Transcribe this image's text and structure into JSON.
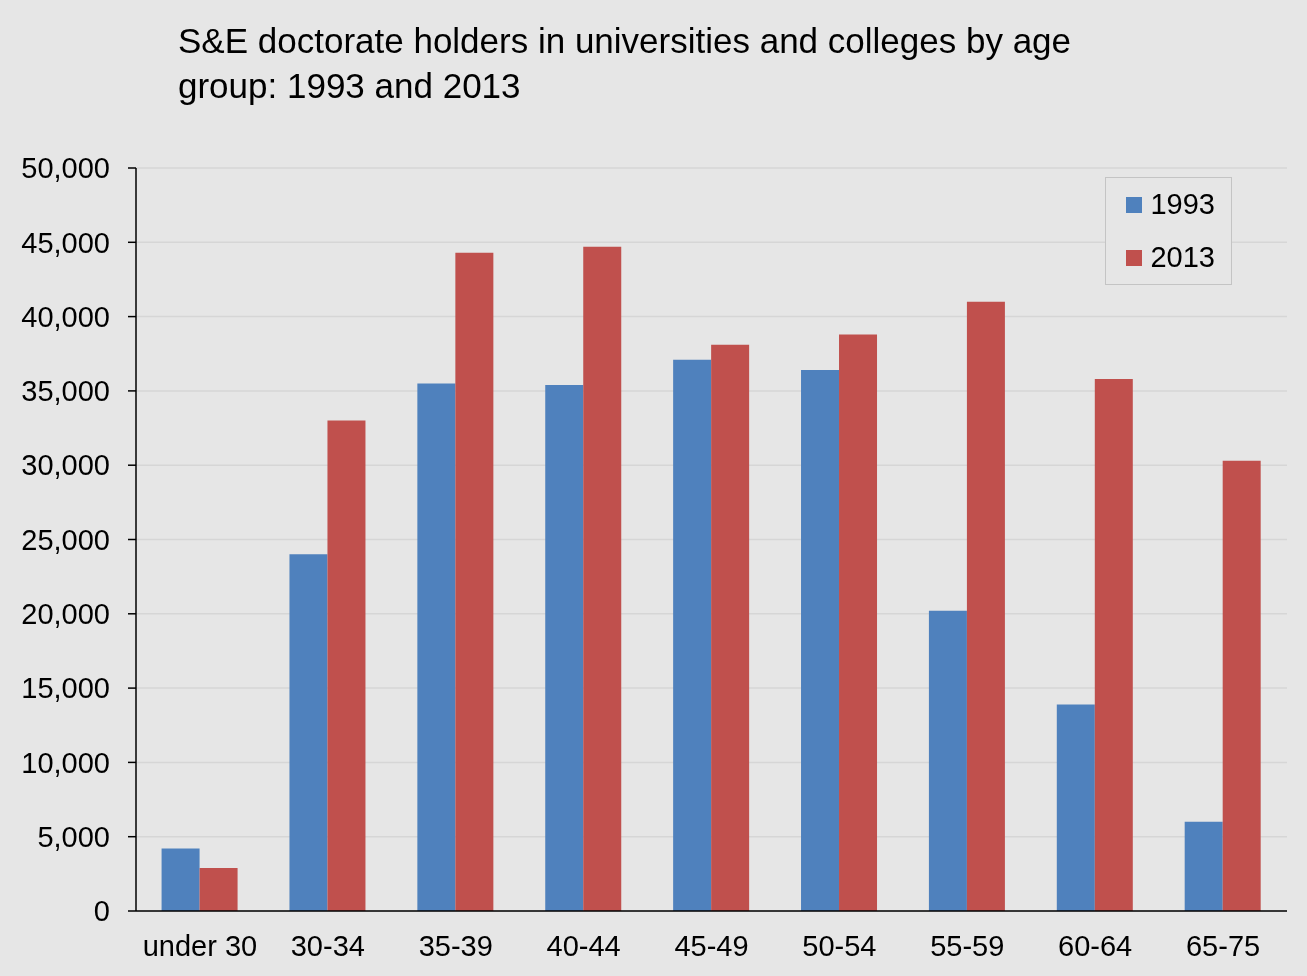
{
  "chart_data": {
    "type": "bar",
    "title": "S&E doctorate holders in universities and colleges by age group: 1993 and 2013",
    "categories": [
      "under 30",
      "30-34",
      "35-39",
      "40-44",
      "45-49",
      "50-54",
      "55-59",
      "60-64",
      "65-75"
    ],
    "series": [
      {
        "name": "1993",
        "color": "#4f81bd",
        "values": [
          4200,
          24000,
          35500,
          35400,
          37100,
          36400,
          20200,
          13900,
          6000
        ]
      },
      {
        "name": "2013",
        "color": "#c0504d",
        "values": [
          2900,
          33000,
          44300,
          44700,
          38100,
          38800,
          41000,
          35800,
          30300
        ]
      }
    ],
    "ylim": [
      0,
      50000
    ],
    "yticks": [
      0,
      {
        "value": 5000,
        "label": "5,000"
      },
      {
        "value": 10000,
        "label": "10,000"
      },
      {
        "value": 15000,
        "label": "15,000"
      },
      {
        "value": 20000,
        "label": "20,000"
      },
      {
        "value": 25000,
        "label": "25,000"
      },
      {
        "value": 30000,
        "label": "30,000"
      },
      {
        "value": 35000,
        "label": "35,000"
      },
      {
        "value": 40000,
        "label": "40,000"
      },
      {
        "value": 45000,
        "label": "45,000"
      },
      {
        "value": 50000,
        "label": "50,000"
      }
    ],
    "grid": "y",
    "legend": "top right"
  }
}
